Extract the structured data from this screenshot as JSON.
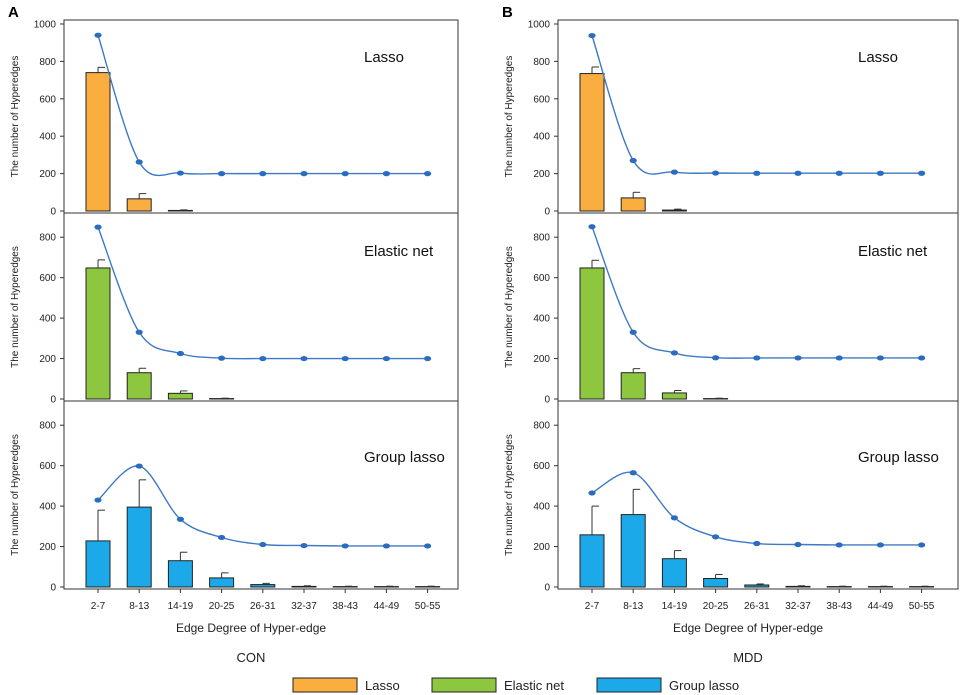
{
  "figure": {
    "panel_labels": [
      "A",
      "B"
    ],
    "legend": [
      {
        "name": "Lasso",
        "color": "#F9AE3F"
      },
      {
        "name": "Elastic net",
        "color": "#8DC63F"
      },
      {
        "name": "Group lasso",
        "color": "#1CA9E9"
      }
    ],
    "line_color": "#3D7AC3",
    "point_color": "#2A6CC0",
    "border_color": "#333333"
  },
  "chart_data": [
    {
      "type": "bar",
      "panel": "A",
      "condition": "CON",
      "categories": [
        "2-7",
        "8-13",
        "14-19",
        "20-25",
        "26-31",
        "32-37",
        "38-43",
        "44-49",
        "50-55"
      ],
      "xlabel": "Edge Degree of Hyper-edge",
      "ylabel": "The number of Hyperedges",
      "series": [
        {
          "name": "Lasso",
          "values": [
            740,
            65,
            3,
            0,
            0,
            0,
            0,
            0,
            0
          ],
          "errors": [
            28,
            28,
            3,
            0,
            0,
            0,
            0,
            0,
            0
          ],
          "line": [
            940,
            262,
            203,
            200,
            200,
            200,
            200,
            200,
            200
          ],
          "ylim": [
            0,
            1000
          ],
          "yticks": [
            0,
            200,
            400,
            600,
            800,
            1000
          ]
        },
        {
          "name": "Elastic net",
          "values": [
            648,
            130,
            28,
            2,
            0,
            0,
            0,
            0,
            0
          ],
          "errors": [
            40,
            22,
            12,
            2,
            0,
            0,
            0,
            0,
            0
          ],
          "line": [
            850,
            330,
            225,
            202,
            200,
            200,
            200,
            200,
            200
          ],
          "ylim": [
            0,
            900
          ],
          "yticks": [
            0,
            200,
            400,
            600,
            800
          ]
        },
        {
          "name": "Group lasso",
          "values": [
            228,
            395,
            130,
            45,
            12,
            3,
            2,
            2,
            2
          ],
          "errors": [
            152,
            135,
            42,
            25,
            6,
            3,
            2,
            2,
            2
          ],
          "line": [
            430,
            598,
            335,
            245,
            210,
            205,
            203,
            203,
            203
          ],
          "ylim": [
            0,
            900
          ],
          "yticks": [
            0,
            200,
            400,
            600,
            800
          ]
        }
      ]
    },
    {
      "type": "bar",
      "panel": "B",
      "condition": "MDD",
      "categories": [
        "2-7",
        "8-13",
        "14-19",
        "20-25",
        "26-31",
        "32-37",
        "38-43",
        "44-49",
        "50-55"
      ],
      "xlabel": "Edge Degree of Hyper-edge",
      "ylabel": "The number of Hyperedges",
      "series": [
        {
          "name": "Lasso",
          "values": [
            735,
            70,
            5,
            0,
            0,
            0,
            0,
            0,
            0
          ],
          "errors": [
            35,
            30,
            5,
            0,
            0,
            0,
            0,
            0,
            0
          ],
          "line": [
            938,
            270,
            208,
            203,
            202,
            202,
            202,
            202,
            202
          ],
          "ylim": [
            0,
            1000
          ],
          "yticks": [
            0,
            200,
            400,
            600,
            800,
            1000
          ]
        },
        {
          "name": "Elastic net",
          "values": [
            648,
            130,
            30,
            2,
            0,
            0,
            0,
            0,
            0
          ],
          "errors": [
            38,
            20,
            12,
            2,
            0,
            0,
            0,
            0,
            0
          ],
          "line": [
            852,
            330,
            228,
            204,
            203,
            203,
            203,
            203,
            203
          ],
          "ylim": [
            0,
            900
          ],
          "yticks": [
            0,
            200,
            400,
            600,
            800
          ]
        },
        {
          "name": "Group lasso",
          "values": [
            258,
            358,
            140,
            42,
            10,
            3,
            2,
            2,
            2
          ],
          "errors": [
            142,
            125,
            40,
            20,
            5,
            3,
            2,
            2,
            2
          ],
          "line": [
            465,
            565,
            342,
            248,
            215,
            210,
            208,
            208,
            208
          ],
          "ylim": [
            0,
            900
          ],
          "yticks": [
            0,
            200,
            400,
            600,
            800
          ]
        }
      ]
    }
  ]
}
